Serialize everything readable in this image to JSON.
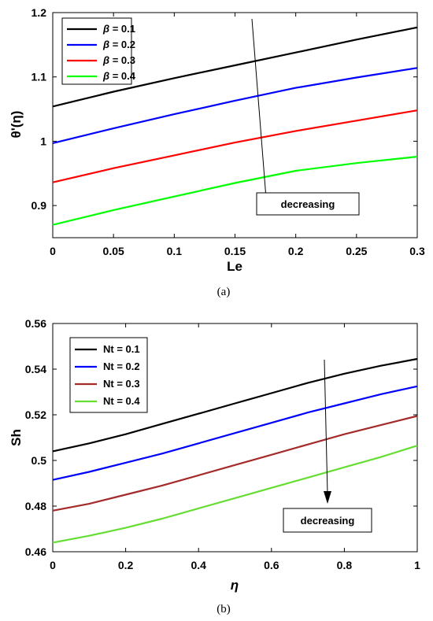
{
  "chart_data": [
    {
      "type": "line",
      "caption": "(a)",
      "xlabel": "Le",
      "ylabel": "θ'(η)",
      "xlim": [
        0,
        0.3
      ],
      "ylim": [
        0.85,
        1.2
      ],
      "xticks": [
        "0",
        "0.05",
        "0.1",
        "0.15",
        "0.2",
        "0.25",
        "0.3"
      ],
      "yticks": [
        "0.9",
        "1",
        "1.1",
        "1.2"
      ],
      "x": [
        0,
        0.05,
        0.1,
        0.15,
        0.2,
        0.25,
        0.3
      ],
      "series": [
        {
          "name": "β = 0.1",
          "legend_symbol": "β",
          "legend_value": " = 0.1",
          "color": "#000000",
          "values": [
            1.054,
            1.077,
            1.098,
            1.118,
            1.138,
            1.158,
            1.177
          ]
        },
        {
          "name": "β = 0.2",
          "legend_symbol": "β",
          "legend_value": " = 0.2",
          "color": "#0000ff",
          "values": [
            0.997,
            1.02,
            1.042,
            1.063,
            1.083,
            1.099,
            1.114
          ]
        },
        {
          "name": "β = 0.3",
          "legend_symbol": "β",
          "legend_value": " = 0.3",
          "color": "#ff0000",
          "values": [
            0.936,
            0.958,
            0.978,
            0.998,
            1.016,
            1.032,
            1.048
          ]
        },
        {
          "name": "β = 0.4",
          "legend_symbol": "β",
          "legend_value": " = 0.4",
          "color": "#00ff00",
          "values": [
            0.87,
            0.893,
            0.914,
            0.935,
            0.954,
            0.966,
            0.976
          ]
        }
      ],
      "annotation": "decreasing",
      "legend_position": "top-left",
      "grid": false
    },
    {
      "type": "line",
      "caption": "(b)",
      "xlabel": "η",
      "ylabel": "Sh",
      "xlim": [
        0,
        1
      ],
      "ylim": [
        0.46,
        0.56
      ],
      "xticks": [
        "0",
        "0.2",
        "0.4",
        "0.6",
        "0.8",
        "1"
      ],
      "yticks": [
        "0.46",
        "0.48",
        "0.5",
        "0.52",
        "0.54",
        "0.56"
      ],
      "x": [
        0,
        0.1,
        0.2,
        0.3,
        0.4,
        0.5,
        0.6,
        0.7,
        0.8,
        0.9,
        1
      ],
      "series": [
        {
          "name": "Nt = 0.1",
          "legend_symbol": "",
          "legend_value": "Nt = 0.1",
          "color": "#000000",
          "values": [
            0.504,
            0.5075,
            0.5115,
            0.516,
            0.5205,
            0.525,
            0.5295,
            0.534,
            0.538,
            0.5415,
            0.5445
          ]
        },
        {
          "name": "Nt = 0.2",
          "legend_symbol": "",
          "legend_value": "Nt = 0.2",
          "color": "#0000ff",
          "values": [
            0.4915,
            0.495,
            0.499,
            0.503,
            0.5075,
            0.512,
            0.5165,
            0.521,
            0.525,
            0.529,
            0.5325
          ]
        },
        {
          "name": "Nt = 0.3",
          "legend_symbol": "",
          "legend_value": "Nt = 0.3",
          "color": "#a52a2a",
          "values": [
            0.478,
            0.481,
            0.485,
            0.489,
            0.4935,
            0.498,
            0.5025,
            0.507,
            0.5115,
            0.5155,
            0.5195
          ]
        },
        {
          "name": "Nt = 0.4",
          "legend_symbol": "",
          "legend_value": "Nt = 0.4",
          "color": "#66dd33",
          "values": [
            0.464,
            0.467,
            0.4705,
            0.4745,
            0.479,
            0.4835,
            0.488,
            0.4925,
            0.497,
            0.5015,
            0.5065
          ]
        }
      ],
      "annotation": "decreasing",
      "legend_position": "top-left",
      "grid": false
    }
  ]
}
